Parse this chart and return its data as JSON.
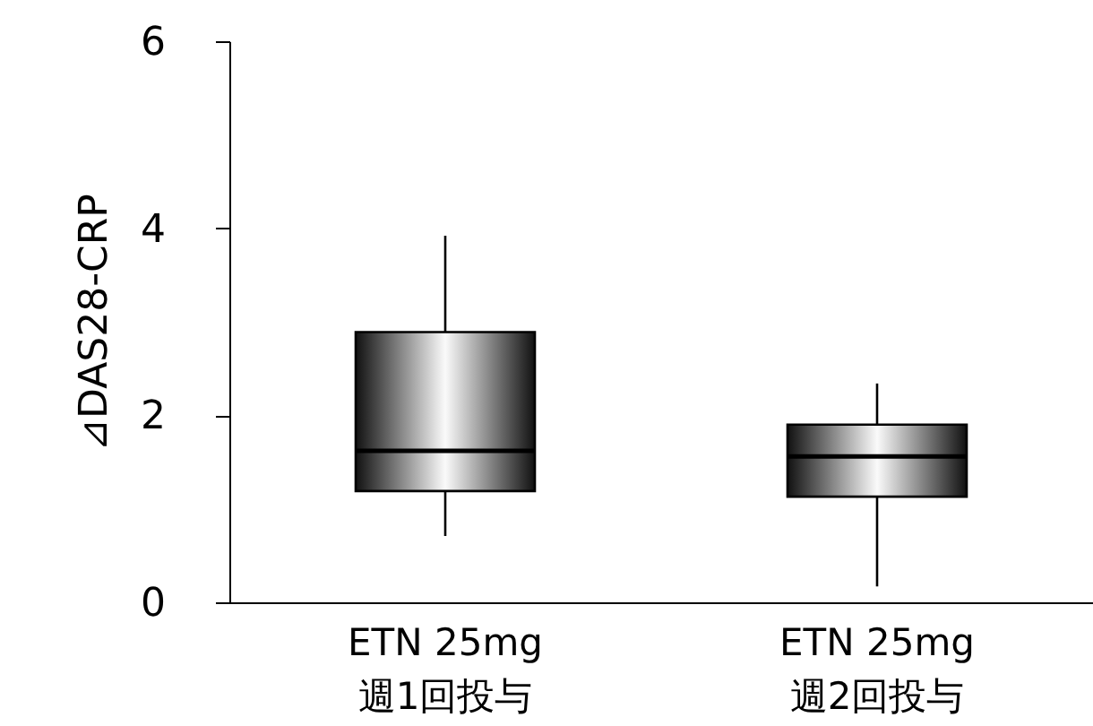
{
  "chart_data": {
    "type": "box",
    "ylabel": "⊿DAS28-CRP",
    "categories": [
      "ETN 25mg\n週1回投与",
      "ETN 25mg\n週2回投与"
    ],
    "boxes": [
      {
        "low": 0.71,
        "q1": 1.19,
        "median": 1.62,
        "q3": 2.89,
        "high": 3.92
      },
      {
        "low": 0.17,
        "q1": 1.13,
        "median": 1.56,
        "q3": 1.9,
        "high": 2.34
      }
    ],
    "ylim": [
      0,
      6
    ],
    "yticks": [
      0,
      2,
      4,
      6
    ],
    "grid": false
  }
}
